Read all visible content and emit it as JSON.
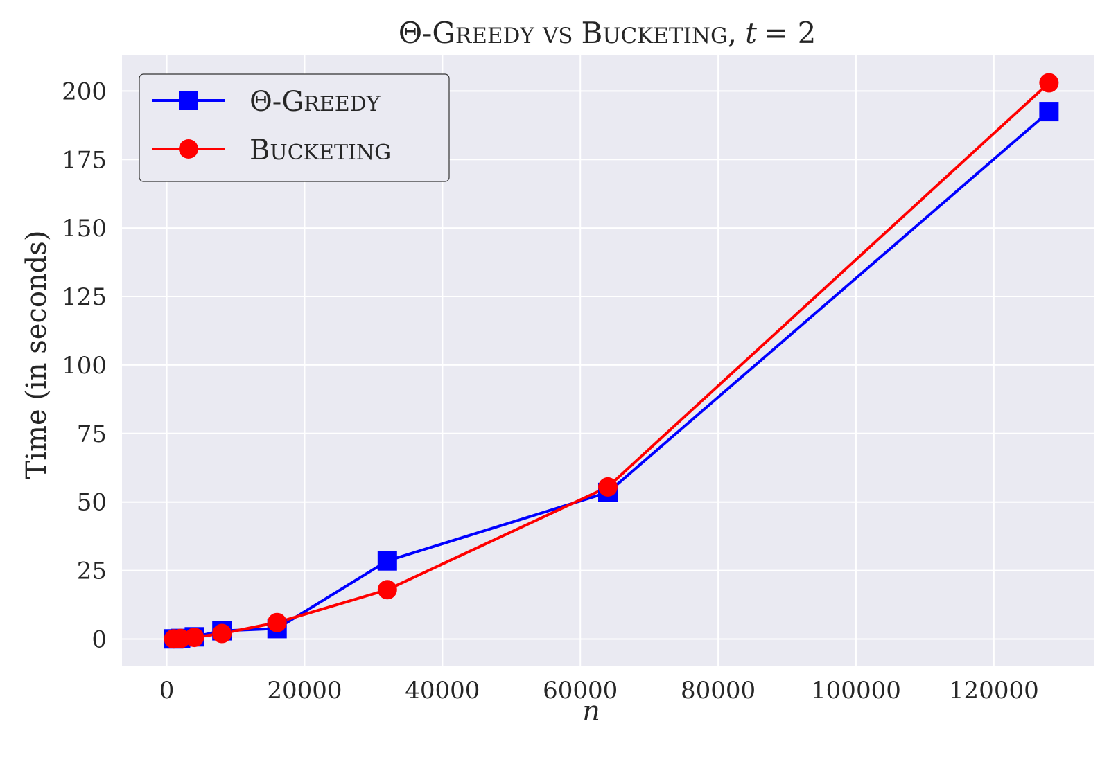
{
  "chart_data": {
    "type": "line",
    "title_parts": {
      "theta": "Θ",
      "g1": "G",
      "w1": "REEDY",
      "vs": "VS",
      "b1": "B",
      "w2": "UCKETING",
      "comma": ",",
      "t": "t",
      "eq": "= 2"
    },
    "xlabel": "n",
    "ylabel": "Time (in seconds)",
    "xlim": [
      -6500,
      134500
    ],
    "ylim": [
      -10,
      213
    ],
    "xticks": [
      0,
      20000,
      40000,
      60000,
      80000,
      100000,
      120000
    ],
    "xtick_labels": [
      "0",
      "20000",
      "40000",
      "60000",
      "80000",
      "100000",
      "120000"
    ],
    "yticks": [
      0,
      25,
      50,
      75,
      100,
      125,
      150,
      175,
      200
    ],
    "ytick_labels": [
      "0",
      "25",
      "50",
      "75",
      "100",
      "125",
      "150",
      "175",
      "200"
    ],
    "grid": true,
    "legend_position": "top-left",
    "series": [
      {
        "key": "greedy",
        "name_parts": {
          "theta": "Θ",
          "g": "G",
          "rest": "REEDY"
        },
        "color": "#0000ff",
        "marker": "square",
        "x": [
          1000,
          2000,
          4000,
          8000,
          16000,
          32000,
          64000,
          128000
        ],
        "y": [
          0.05,
          0.2,
          0.8,
          3.0,
          3.8,
          28.5,
          53.5,
          192.5
        ]
      },
      {
        "key": "bucketing",
        "name_parts": {
          "b": "B",
          "rest": "UCKETING"
        },
        "color": "#ff0000",
        "marker": "circle",
        "x": [
          1000,
          2000,
          4000,
          8000,
          16000,
          32000,
          64000,
          128000
        ],
        "y": [
          0.05,
          0.2,
          0.6,
          2.0,
          6.0,
          18.0,
          55.5,
          203.0
        ]
      }
    ],
    "background_color": "#eaeaf2",
    "grid_color": "#ffffff"
  }
}
